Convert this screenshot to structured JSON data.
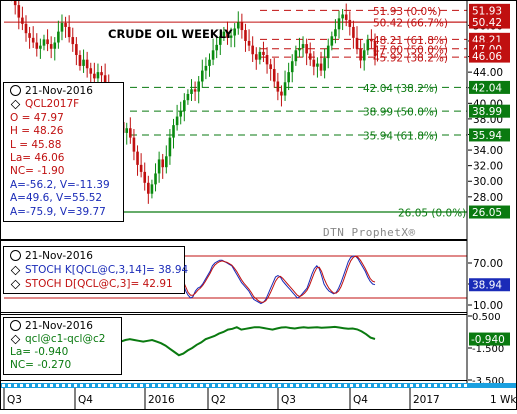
{
  "window": {
    "watermark": "DTN ProphetX®",
    "last_bar_tag": "1 Wk"
  },
  "colors": {
    "price_up": "#0a8a10",
    "price_down": "#c01010",
    "fib_green": "#0a7a10",
    "fib_red": "#c01010",
    "stoch_k": "#1a2bb8",
    "stoch_d": "#c01010",
    "spread_line": "#0a7a10",
    "axis_tag_bg": "#0a7a10",
    "time_bar_bg": "#1aa0e0"
  },
  "price_panel": {
    "title": "CRUDE OIL WEEKLY",
    "info": {
      "date": "21-Nov-2016",
      "symbol": "QCL2017F",
      "open": "O = 47.97",
      "high": "H = 48.26",
      "low": "L = 45.88",
      "last": "La= 46.06",
      "net_change": "NC= -1.90",
      "a1": "A=-56.2, V=-11.39",
      "a2": "A=49.6, V=55.52",
      "a3": "A=-75.9, V=39.77"
    },
    "fib_labels": [
      {
        "text": "51.93 (0.0%)",
        "color": "red"
      },
      {
        "text": "50.42 (66.7%)",
        "color": "red"
      },
      {
        "text": "48.21 (61.8%)",
        "color": "red"
      },
      {
        "text": "47.00 (50.0%)",
        "color": "red"
      },
      {
        "text": "45.92 (38.2%)",
        "color": "red"
      },
      {
        "text": "42.04 (38.2%)",
        "color": "green"
      },
      {
        "text": "38.99 (50.0%)",
        "color": "green"
      },
      {
        "text": "35.94 (61.8%)",
        "color": "green"
      },
      {
        "text": "26.05 (0.0%)",
        "color": "green"
      }
    ],
    "axis_ticks": [
      "50.00",
      "48.00",
      "46.00",
      "44.00",
      "42.00",
      "40.00",
      "38.00",
      "36.00",
      "34.00",
      "32.00",
      "30.00",
      "28.00"
    ],
    "axis_tags": [
      "51.93",
      "50.42",
      "48.21",
      "47.00",
      "46.06",
      "42.04",
      "38.99",
      "35.94",
      "26.05"
    ]
  },
  "stoch_panel": {
    "date": "21-Nov-2016",
    "k_label": "STOCH K[QCL@C,3,14]= 38.94",
    "d_label": "STOCH D[QCL@C,3]= 42.91",
    "axis_ticks": [
      "70.00",
      "40.00",
      "10.00"
    ],
    "axis_tag": "38.94"
  },
  "spread_panel": {
    "date": "21-Nov-2016",
    "series_label": "qcl@c1-qcl@c2",
    "last": "La= -0.940",
    "net_change": "NC= -0.270",
    "axis_ticks": [
      "0.500",
      "-1.500",
      "-3.500"
    ],
    "axis_tag": "-0.940"
  },
  "time_axis": {
    "labels": [
      "Q3",
      "Q4",
      "2016",
      "Q2",
      "Q3",
      "Q4",
      "2017"
    ]
  },
  "chart_data": [
    {
      "type": "candlestick",
      "title": "CRUDE OIL WEEKLY",
      "ylim": [
        24,
        53
      ],
      "x_range": [
        "2015-07",
        "2017-03"
      ],
      "horizontal_levels": [
        51.93,
        50.42,
        48.21,
        47.0,
        45.92,
        42.04,
        38.99,
        35.94,
        26.05
      ],
      "weekly_closes": [
        55.2,
        54.0,
        52.6,
        51.0,
        50.2,
        49.0,
        48.4,
        47.8,
        47.0,
        47.4,
        48.2,
        47.6,
        47.0,
        47.8,
        49.2,
        50.3,
        49.8,
        48.5,
        47.6,
        46.2,
        44.8,
        45.6,
        44.5,
        43.8,
        43.2,
        44.0,
        43.6,
        42.5,
        41.4,
        40.3,
        39.0,
        37.6,
        36.2,
        36.8,
        35.6,
        33.8,
        32.1,
        31.2,
        29.8,
        28.4,
        29.6,
        31.0,
        32.8,
        31.8,
        33.2,
        35.6,
        37.2,
        38.3,
        39.0,
        40.4,
        41.2,
        41.8,
        41.5,
        42.8,
        44.2,
        44.8,
        45.6,
        46.8,
        47.5,
        48.6,
        49.2,
        48.4,
        48.7,
        49.6,
        50.4,
        49.4,
        48.0,
        47.4,
        46.3,
        45.6,
        46.6,
        46.2,
        45.0,
        44.4,
        42.8,
        41.5,
        41.0,
        42.7,
        44.0,
        45.4,
        46.8,
        47.1,
        47.6,
        46.4,
        45.6,
        44.7,
        45.1,
        44.2,
        45.8,
        47.4,
        48.6,
        49.5,
        50.9,
        51.4,
        50.7,
        49.8,
        48.4,
        47.0,
        45.5,
        46.8,
        48.2,
        47.96,
        46.06
      ],
      "last_bar": {
        "date": "2016-11-21",
        "open": 47.97,
        "high": 48.26,
        "low": 45.88,
        "last": 46.06,
        "net_change": -1.9
      },
      "time_labels": [
        "Q3",
        "Q4",
        "2016",
        "Q2",
        "Q3",
        "Q4",
        "2017"
      ]
    },
    {
      "type": "line",
      "ylim": [
        0,
        100
      ],
      "series": [
        {
          "name": "STOCH K[QCL@C,3,14]",
          "values": [
            62,
            58,
            48,
            40,
            30,
            24,
            20,
            22,
            30,
            34,
            36,
            40,
            46,
            52,
            58,
            66,
            70,
            72,
            74,
            74,
            72,
            70,
            68,
            66,
            60,
            54,
            48,
            42,
            38,
            34,
            30,
            24,
            18,
            16,
            14,
            12,
            14,
            18,
            26,
            34,
            42,
            50,
            52,
            50,
            44,
            40,
            36,
            32,
            28,
            24,
            20,
            22,
            26,
            30,
            34,
            44,
            54,
            62,
            66,
            62,
            52,
            40,
            34,
            30,
            28,
            26,
            28,
            34,
            42,
            52,
            62,
            72,
            78,
            80,
            80,
            76,
            70,
            64,
            58,
            50,
            44,
            40,
            38.94
          ]
        },
        {
          "name": "STOCH D[QCL@C,3]",
          "values": [
            64,
            60,
            52,
            44,
            36,
            28,
            24,
            24,
            27,
            31,
            34,
            38,
            43,
            49,
            55,
            62,
            67,
            70,
            72,
            73,
            72,
            71,
            69,
            67,
            63,
            58,
            52,
            46,
            41,
            37,
            33,
            28,
            22,
            19,
            16,
            14,
            14,
            16,
            21,
            28,
            36,
            44,
            49,
            51,
            48,
            44,
            40,
            36,
            32,
            28,
            24,
            22,
            24,
            27,
            31,
            38,
            47,
            56,
            63,
            64,
            58,
            48,
            40,
            34,
            30,
            27,
            27,
            30,
            36,
            45,
            55,
            65,
            73,
            78,
            80,
            78,
            74,
            68,
            62,
            55,
            48,
            44,
            42.91
          ]
        }
      ]
    },
    {
      "type": "line",
      "ylim": [
        -3.5,
        0.5
      ],
      "series": [
        {
          "name": "qcl@c1-qcl@c2",
          "values": [
            -1.3,
            -1.2,
            -1.1,
            -1.0,
            -0.95,
            -1.0,
            -1.05,
            -1.1,
            -1.05,
            -1.0,
            -1.1,
            -1.2,
            -1.35,
            -1.55,
            -1.75,
            -1.95,
            -1.85,
            -1.65,
            -1.5,
            -1.3,
            -1.15,
            -0.95,
            -0.85,
            -0.75,
            -0.6,
            -0.5,
            -0.35,
            -0.3,
            -0.2,
            -0.35,
            -0.3,
            -0.25,
            -0.2,
            -0.2,
            -0.25,
            -0.3,
            -0.35,
            -0.28,
            -0.22,
            -0.2,
            -0.25,
            -0.28,
            -0.24,
            -0.2,
            -0.24,
            -0.22,
            -0.2,
            -0.24,
            -0.22,
            -0.2,
            -0.18,
            -0.22,
            -0.26,
            -0.3,
            -0.28,
            -0.34,
            -0.46,
            -0.64,
            -0.85,
            -0.94
          ]
        }
      ],
      "last": -0.94,
      "net_change": -0.27
    }
  ]
}
